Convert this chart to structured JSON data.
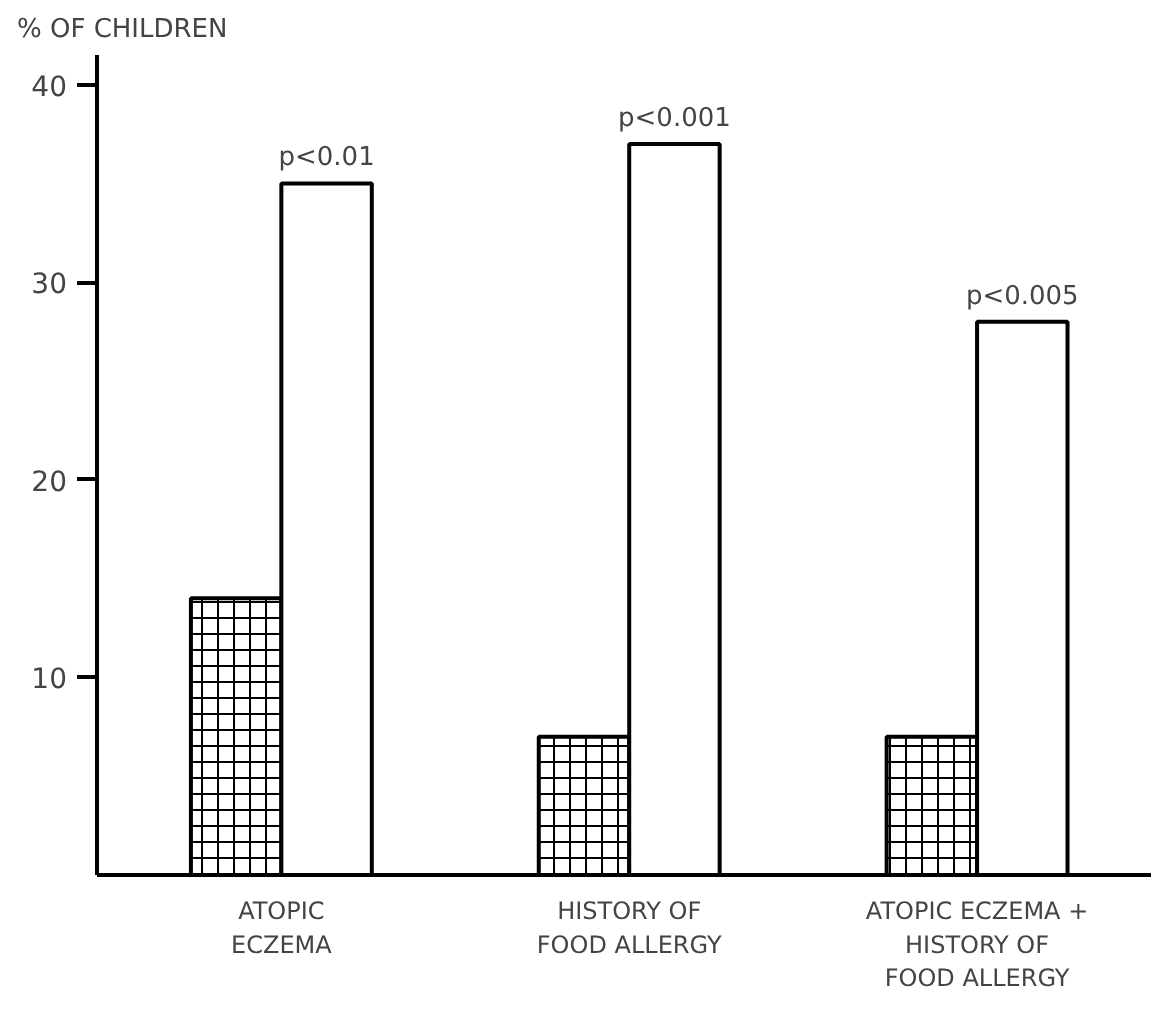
{
  "chart_data": {
    "type": "bar",
    "ylabel": "% OF CHILDREN",
    "categories": [
      "ATOPIC\nECZEMA",
      "HISTORY OF\nFOOD ALLERGY",
      "ATOPIC ECZEMA +\nHISTORY OF\nFOOD ALLERGY"
    ],
    "series": [
      {
        "color": "#000000",
        "values": [
          14,
          7,
          7
        ]
      },
      {
        "color": "#ffffff",
        "values": [
          35,
          37,
          28
        ]
      }
    ],
    "ylim": [
      0,
      41.5
    ],
    "yticks": [
      10,
      20,
      30,
      40
    ],
    "annotations": [
      {
        "text": "p<0.01",
        "x": "ATOPIC\nECZEMA",
        "y": 35
      },
      {
        "text": "p<0.001",
        "x": "HISTORY OF\nFOOD ALLERGY",
        "y": 37
      },
      {
        "text": "p<0.005",
        "x": "ATOPIC ECZEMA +\nHISTORY OF\nFOOD ALLERGY",
        "y": 28
      }
    ]
  }
}
